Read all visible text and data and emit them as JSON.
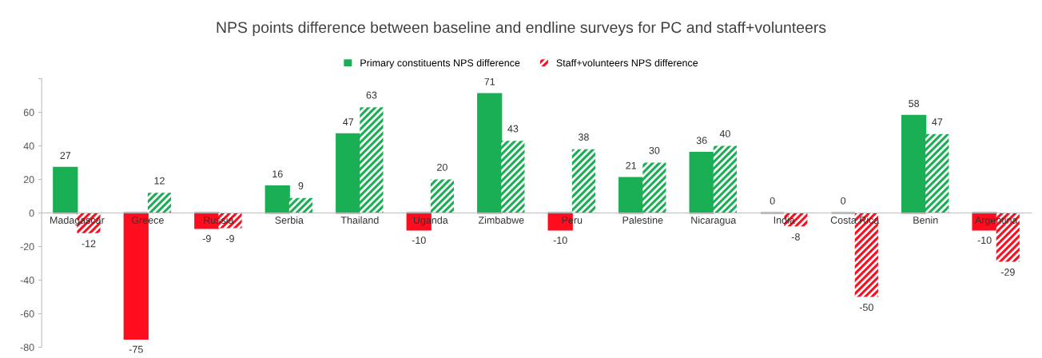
{
  "chart_data": {
    "type": "bar",
    "title": "NPS points difference between baseline and endline surveys for PC and staff+volunteers",
    "categories": [
      "Madagascar",
      "Greece",
      "Russia",
      "Serbia",
      "Thailand",
      "Uganda",
      "Zimbabwe",
      "Peru",
      "Palestine",
      "Nicaragua",
      "India",
      "Costa Rica",
      "Benin",
      "Argentina"
    ],
    "series": [
      {
        "name": "Primary constituents NPS difference",
        "color": "#1aaf54",
        "colors": [
          "#1aaf54",
          "#ff0d1e",
          "#ff0d1e",
          "#1aaf54",
          "#1aaf54",
          "#ff0d1e",
          "#1aaf54",
          "#ff0d1e",
          "#1aaf54",
          "#1aaf54",
          "#1aaf54",
          "#1aaf54",
          "#1aaf54",
          "#ff0d1e"
        ],
        "values": [
          27,
          -75,
          -9,
          16,
          47,
          -10,
          71,
          -10,
          21,
          36,
          0,
          0,
          58,
          -10
        ]
      },
      {
        "name": "Staff+volunteers NPS difference",
        "color": "#ff0d1e",
        "colors": [
          "#ff0d1e",
          "#1aaf54",
          "#ff0d1e",
          "#1aaf54",
          "#1aaf54",
          "#1aaf54",
          "#1aaf54",
          "#1aaf54",
          "#1aaf54",
          "#1aaf54",
          "#ff0d1e",
          "#ff0d1e",
          "#1aaf54",
          "#ff0d1e"
        ],
        "values": [
          -12,
          12,
          -9,
          9,
          63,
          20,
          43,
          38,
          30,
          40,
          -8,
          -50,
          47,
          -29
        ]
      }
    ],
    "ylim": [
      -80,
      80
    ],
    "yticks": [
      -80,
      -60,
      -40,
      -20,
      0,
      20,
      40,
      60,
      {
        "value": 80,
        "label": null
      }
    ],
    "data_labels": true,
    "grid": false,
    "legend": "top"
  }
}
